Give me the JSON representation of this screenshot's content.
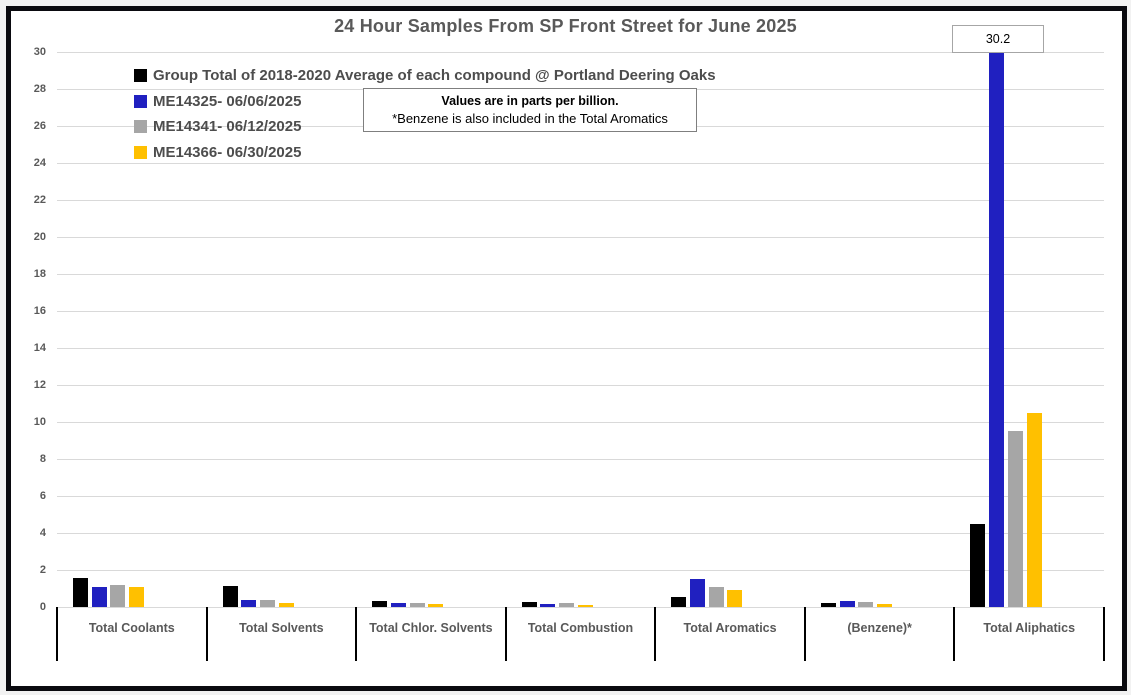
{
  "window": {
    "frame_border_color": "#000000",
    "background_color": "#ffffff"
  },
  "chart_data": {
    "type": "bar",
    "title": "24 Hour Samples From SP Front Street for June 2025",
    "value_unit": "parts per billion",
    "categories": [
      "Total Coolants",
      "Total Solvents",
      "Total Chlor. Solvents",
      "Total Combustion",
      "Total Aromatics",
      "(Benzene)*",
      "Total Aliphatics"
    ],
    "series": [
      {
        "name": "Group Total of 2018-2020 Average of each compound @ Portland Deering Oaks",
        "color": "#000000",
        "values": [
          1.55,
          1.15,
          0.35,
          0.25,
          0.55,
          0.2,
          4.5
        ]
      },
      {
        "name": "ME14325- 06/06/2025",
        "color": "#2020c0",
        "values": [
          1.1,
          0.4,
          0.2,
          0.15,
          1.5,
          0.3,
          30.2
        ]
      },
      {
        "name": "ME14341- 06/12/2025",
        "color": "#a6a6a6",
        "values": [
          1.2,
          0.4,
          0.2,
          0.2,
          1.1,
          0.25,
          9.5
        ]
      },
      {
        "name": "ME14366- 06/30/2025",
        "color": "#ffc000",
        "values": [
          1.1,
          0.2,
          0.15,
          0.1,
          0.9,
          0.15,
          10.5
        ]
      }
    ],
    "ylim": [
      0,
      30
    ],
    "ytick_step": 2,
    "grid": true,
    "legend_position": "top-left",
    "annotations": [
      {
        "text": "30.2",
        "series_index": 1,
        "category_index": 6
      }
    ]
  },
  "note_box": {
    "line1": "Values are in parts per billion.",
    "line2": "*Benzene is also included in the Total Aromatics"
  },
  "styles": {
    "title_color": "#595959",
    "axis_text_color": "#595959",
    "gridline_color": "#d9d9d9",
    "tick_color": "#000000"
  }
}
